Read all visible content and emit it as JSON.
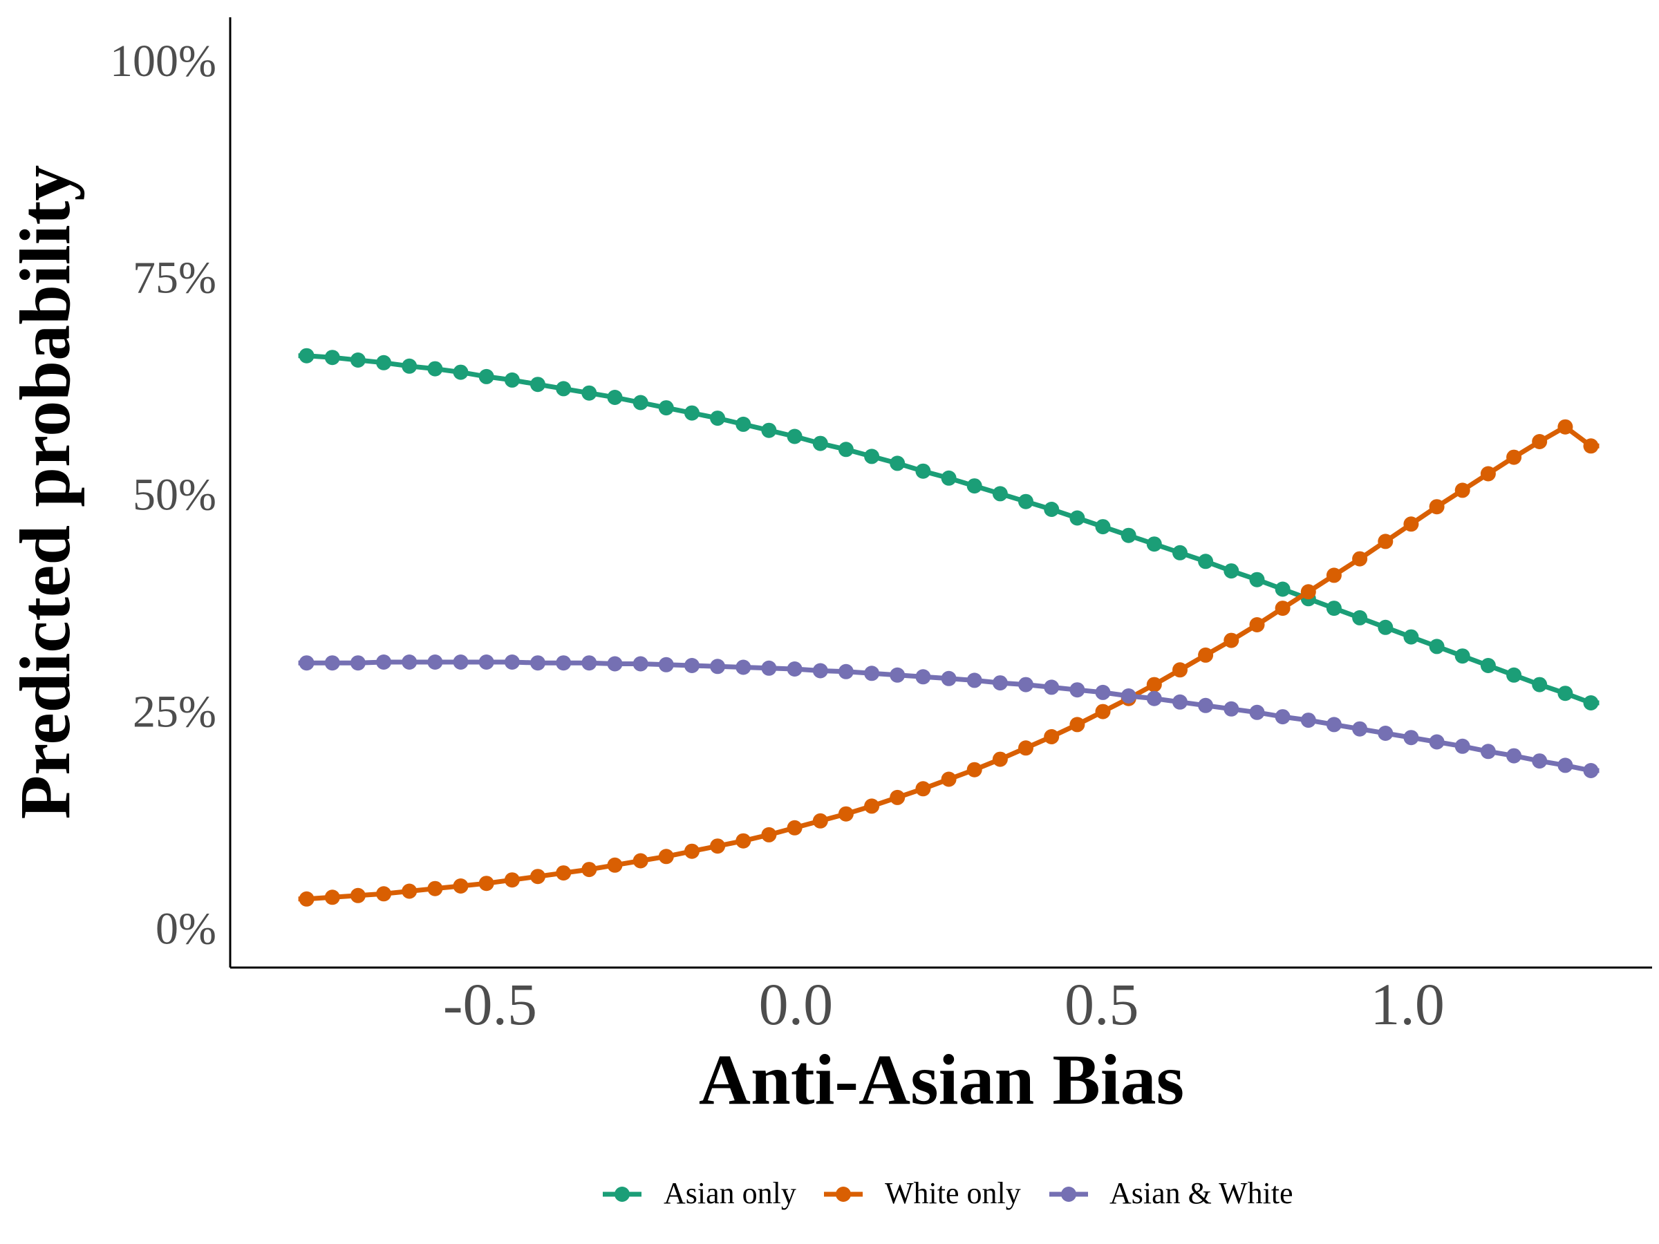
{
  "chart_data": {
    "type": "line",
    "xlabel": "Anti-Asian Bias",
    "ylabel": "Predicted probability",
    "xlim": [
      -0.925,
      1.4
    ],
    "ylim": [
      -0.045,
      1.05
    ],
    "x_ticks": [
      -0.5,
      0.0,
      0.5,
      1.0
    ],
    "x_tick_labels": [
      "-0.5",
      "0.0",
      "0.5",
      "1.0"
    ],
    "y_ticks": [
      0,
      0.25,
      0.5,
      0.75,
      1.0
    ],
    "y_tick_labels": [
      "0%",
      "25%",
      "50%",
      "75%",
      "100%"
    ],
    "grid": false,
    "legend_position": "bottom",
    "x": [
      -0.8,
      -0.758,
      -0.716,
      -0.674,
      -0.632,
      -0.59,
      -0.548,
      -0.506,
      -0.464,
      -0.422,
      -0.38,
      -0.338,
      -0.296,
      -0.254,
      -0.212,
      -0.17,
      -0.128,
      -0.086,
      -0.044,
      -0.002,
      0.04,
      0.082,
      0.124,
      0.166,
      0.208,
      0.25,
      0.292,
      0.334,
      0.376,
      0.418,
      0.46,
      0.502,
      0.544,
      0.586,
      0.628,
      0.67,
      0.712,
      0.754,
      0.796,
      0.838,
      0.88,
      0.922,
      0.964,
      1.006,
      1.048,
      1.09,
      1.132,
      1.174,
      1.216,
      1.258,
      1.3
    ],
    "series": [
      {
        "name": "Asian only",
        "color": "#1b9e77",
        "values": [
          0.66,
          0.658,
          0.655,
          0.652,
          0.648,
          0.645,
          0.641,
          0.636,
          0.632,
          0.627,
          0.622,
          0.617,
          0.612,
          0.606,
          0.6,
          0.594,
          0.588,
          0.581,
          0.574,
          0.567,
          0.559,
          0.552,
          0.544,
          0.536,
          0.527,
          0.519,
          0.51,
          0.501,
          0.492,
          0.483,
          0.473,
          0.463,
          0.453,
          0.443,
          0.433,
          0.423,
          0.412,
          0.402,
          0.391,
          0.38,
          0.369,
          0.358,
          0.347,
          0.336,
          0.325,
          0.314,
          0.303,
          0.292,
          0.281,
          0.271,
          0.26
        ]
      },
      {
        "name": "White only",
        "color": "#d95f02",
        "values": [
          0.034,
          0.036,
          0.038,
          0.04,
          0.043,
          0.046,
          0.049,
          0.052,
          0.056,
          0.06,
          0.064,
          0.068,
          0.073,
          0.078,
          0.083,
          0.089,
          0.095,
          0.101,
          0.108,
          0.116,
          0.124,
          0.132,
          0.141,
          0.151,
          0.161,
          0.172,
          0.183,
          0.195,
          0.208,
          0.221,
          0.235,
          0.25,
          0.265,
          0.281,
          0.298,
          0.315,
          0.332,
          0.35,
          0.369,
          0.388,
          0.407,
          0.426,
          0.446,
          0.466,
          0.486,
          0.505,
          0.524,
          0.543,
          0.561,
          0.578,
          0.556
        ]
      },
      {
        "name": "Asian & White",
        "color": "#7570b3",
        "values": [
          0.306,
          0.306,
          0.306,
          0.307,
          0.307,
          0.307,
          0.307,
          0.307,
          0.307,
          0.306,
          0.306,
          0.306,
          0.305,
          0.305,
          0.304,
          0.303,
          0.302,
          0.301,
          0.3,
          0.299,
          0.297,
          0.296,
          0.294,
          0.292,
          0.29,
          0.288,
          0.286,
          0.283,
          0.281,
          0.278,
          0.275,
          0.272,
          0.268,
          0.265,
          0.261,
          0.257,
          0.253,
          0.249,
          0.244,
          0.24,
          0.235,
          0.23,
          0.225,
          0.22,
          0.215,
          0.21,
          0.204,
          0.199,
          0.193,
          0.188,
          0.182
        ]
      }
    ]
  }
}
